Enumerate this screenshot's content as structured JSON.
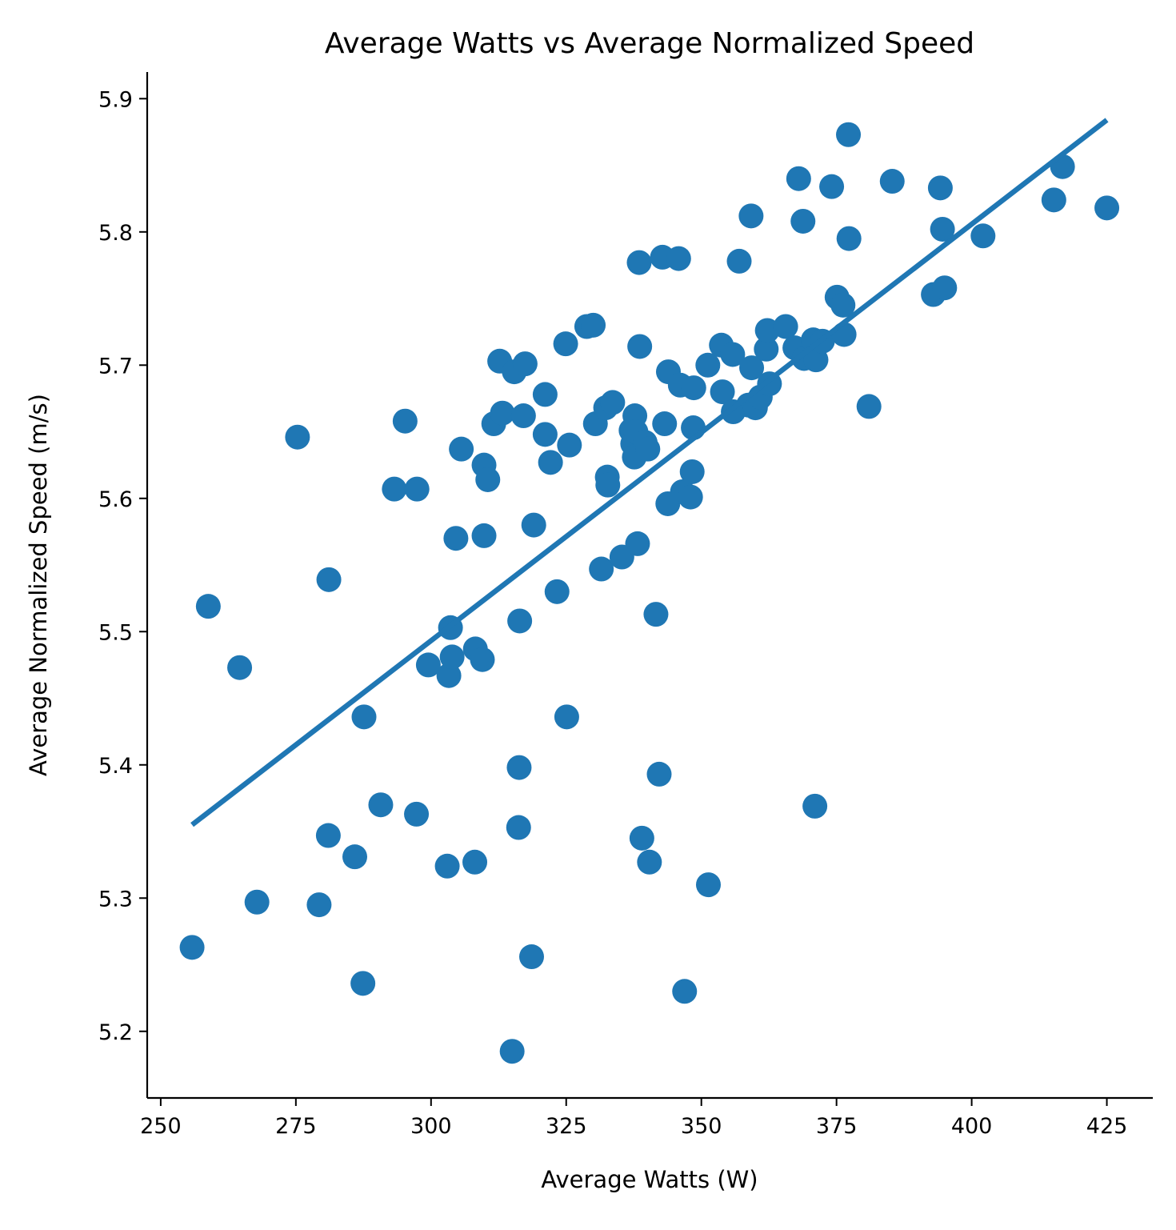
{
  "chart_data": {
    "type": "scatter",
    "title": "Average Watts vs Average Normalized Speed",
    "xlabel": "Average Watts (W)",
    "ylabel": "Average Normalized Speed (m/s)",
    "xlim": [
      247.5,
      433.5
    ],
    "ylim": [
      5.15,
      5.92
    ],
    "x_ticks": [
      250,
      275,
      300,
      325,
      350,
      375,
      400,
      425
    ],
    "y_ticks": [
      5.2,
      5.3,
      5.4,
      5.5,
      5.6,
      5.7,
      5.8,
      5.9
    ],
    "x_tick_labels": [
      "250",
      "275",
      "300",
      "325",
      "350",
      "375",
      "400",
      "425"
    ],
    "y_tick_labels": [
      "5.2",
      "5.3",
      "5.4",
      "5.5",
      "5.6",
      "5.7",
      "5.8",
      "5.9"
    ],
    "grid": false,
    "legend": "none",
    "color": "#1f77b4",
    "trend_line": {
      "x": [
        255.8,
        425.0
      ],
      "y": [
        5.355,
        5.884
      ]
    },
    "points": [
      [
        255.8,
        5.263
      ],
      [
        258.8,
        5.519
      ],
      [
        264.6,
        5.473
      ],
      [
        267.8,
        5.297
      ],
      [
        275.3,
        5.646
      ],
      [
        279.3,
        5.295
      ],
      [
        281.0,
        5.347
      ],
      [
        281.1,
        5.539
      ],
      [
        285.9,
        5.331
      ],
      [
        287.4,
        5.236
      ],
      [
        287.6,
        5.436
      ],
      [
        290.7,
        5.37
      ],
      [
        293.2,
        5.607
      ],
      [
        295.2,
        5.658
      ],
      [
        297.3,
        5.363
      ],
      [
        297.4,
        5.607
      ],
      [
        299.5,
        5.475
      ],
      [
        303.0,
        5.324
      ],
      [
        303.3,
        5.467
      ],
      [
        303.6,
        5.503
      ],
      [
        303.9,
        5.481
      ],
      [
        304.6,
        5.57
      ],
      [
        305.6,
        5.637
      ],
      [
        308.1,
        5.327
      ],
      [
        308.2,
        5.487
      ],
      [
        309.5,
        5.479
      ],
      [
        309.8,
        5.625
      ],
      [
        309.8,
        5.572
      ],
      [
        310.5,
        5.614
      ],
      [
        311.6,
        5.656
      ],
      [
        312.7,
        5.703
      ],
      [
        313.2,
        5.664
      ],
      [
        315.0,
        5.185
      ],
      [
        315.4,
        5.695
      ],
      [
        316.2,
        5.353
      ],
      [
        316.3,
        5.398
      ],
      [
        316.4,
        5.508
      ],
      [
        317.1,
        5.662
      ],
      [
        317.4,
        5.701
      ],
      [
        318.6,
        5.256
      ],
      [
        319.0,
        5.58
      ],
      [
        321.1,
        5.678
      ],
      [
        321.1,
        5.648
      ],
      [
        322.1,
        5.627
      ],
      [
        323.3,
        5.53
      ],
      [
        324.9,
        5.716
      ],
      [
        325.1,
        5.436
      ],
      [
        325.6,
        5.64
      ],
      [
        328.8,
        5.729
      ],
      [
        330.0,
        5.73
      ],
      [
        330.4,
        5.656
      ],
      [
        331.5,
        5.547
      ],
      [
        332.3,
        5.668
      ],
      [
        332.6,
        5.616
      ],
      [
        332.7,
        5.61
      ],
      [
        333.6,
        5.672
      ],
      [
        335.3,
        5.556
      ],
      [
        337.0,
        5.651
      ],
      [
        337.3,
        5.641
      ],
      [
        337.6,
        5.631
      ],
      [
        337.7,
        5.662
      ],
      [
        337.9,
        5.65
      ],
      [
        338.2,
        5.566
      ],
      [
        338.5,
        5.777
      ],
      [
        338.6,
        5.714
      ],
      [
        339.0,
        5.345
      ],
      [
        339.6,
        5.642
      ],
      [
        340.1,
        5.637
      ],
      [
        340.4,
        5.327
      ],
      [
        341.6,
        5.513
      ],
      [
        342.2,
        5.393
      ],
      [
        342.8,
        5.781
      ],
      [
        343.2,
        5.656
      ],
      [
        343.8,
        5.596
      ],
      [
        343.9,
        5.695
      ],
      [
        345.8,
        5.78
      ],
      [
        346.1,
        5.685
      ],
      [
        346.5,
        5.605
      ],
      [
        346.9,
        5.23
      ],
      [
        348.0,
        5.601
      ],
      [
        348.3,
        5.62
      ],
      [
        348.5,
        5.653
      ],
      [
        348.6,
        5.683
      ],
      [
        351.2,
        5.7
      ],
      [
        351.3,
        5.31
      ],
      [
        353.7,
        5.715
      ],
      [
        353.9,
        5.68
      ],
      [
        355.8,
        5.708
      ],
      [
        355.9,
        5.665
      ],
      [
        357.0,
        5.778
      ],
      [
        358.7,
        5.67
      ],
      [
        359.2,
        5.812
      ],
      [
        359.3,
        5.698
      ],
      [
        360.0,
        5.668
      ],
      [
        360.9,
        5.676
      ],
      [
        362.0,
        5.712
      ],
      [
        362.2,
        5.726
      ],
      [
        362.6,
        5.686
      ],
      [
        365.6,
        5.729
      ],
      [
        367.3,
        5.713
      ],
      [
        368.0,
        5.84
      ],
      [
        368.8,
        5.808
      ],
      [
        369.0,
        5.705
      ],
      [
        370.7,
        5.719
      ],
      [
        371.0,
        5.369
      ],
      [
        371.2,
        5.704
      ],
      [
        372.4,
        5.718
      ],
      [
        374.1,
        5.834
      ],
      [
        375.1,
        5.751
      ],
      [
        376.2,
        5.745
      ],
      [
        376.4,
        5.723
      ],
      [
        377.2,
        5.873
      ],
      [
        377.3,
        5.795
      ],
      [
        381.0,
        5.669
      ],
      [
        385.3,
        5.838
      ],
      [
        392.9,
        5.753
      ],
      [
        394.2,
        5.833
      ],
      [
        394.6,
        5.802
      ],
      [
        395.0,
        5.758
      ],
      [
        402.1,
        5.797
      ],
      [
        415.2,
        5.824
      ],
      [
        416.8,
        5.849
      ],
      [
        425.0,
        5.818
      ]
    ]
  }
}
